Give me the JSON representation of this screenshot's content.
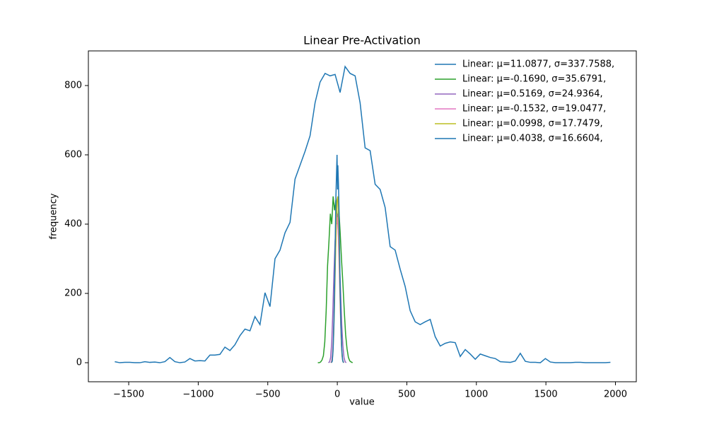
{
  "chart_data": {
    "type": "line",
    "title": "Linear Pre-Activation",
    "x_label": "value",
    "y_label": "frequency",
    "xlim": [
      -1790,
      2150
    ],
    "ylim": [
      -55,
      900
    ],
    "xticks": [
      {
        "value": -1500,
        "label": "−1500"
      },
      {
        "value": -1000,
        "label": "−1000"
      },
      {
        "value": -500,
        "label": "−500"
      },
      0,
      500,
      1000,
      1500,
      2000
    ],
    "yticks": [
      0,
      200,
      400,
      600,
      800
    ],
    "legend": "upper right",
    "series": [
      {
        "name": "Linear: μ=11.0877, σ=337.7588,",
        "color": "#1f77b4",
        "x": [
          -1600,
          -1564,
          -1528,
          -1492,
          -1456,
          -1420,
          -1384,
          -1348,
          -1312,
          -1276,
          -1240,
          -1204,
          -1168,
          -1132,
          -1096,
          -1060,
          -1024,
          -988,
          -952,
          -916,
          -880,
          -844,
          -808,
          -772,
          -736,
          -700,
          -664,
          -628,
          -592,
          -556,
          -520,
          -484,
          -448,
          -412,
          -376,
          -340,
          -304,
          -268,
          -232,
          -196,
          -160,
          -124,
          -88,
          -52,
          -16,
          20,
          56,
          92,
          128,
          164,
          200,
          236,
          272,
          308,
          344,
          380,
          416,
          452,
          488,
          524,
          560,
          596,
          632,
          668,
          704,
          740,
          776,
          812,
          848,
          884,
          920,
          956,
          992,
          1028,
          1064,
          1100,
          1136,
          1172,
          1208,
          1244,
          1280,
          1316,
          1352,
          1388,
          1424,
          1460,
          1496,
          1532,
          1568,
          1604,
          1640,
          1676,
          1712,
          1748,
          1784,
          1820,
          1856,
          1892,
          1928,
          1964
        ],
        "values": [
          3,
          0,
          1,
          1,
          0,
          0,
          3,
          1,
          2,
          0,
          3,
          15,
          3,
          0,
          2,
          12,
          5,
          6,
          5,
          22,
          22,
          24,
          45,
          35,
          52,
          78,
          97,
          92,
          133,
          110,
          202,
          162,
          300,
          325,
          375,
          405,
          530,
          570,
          610,
          655,
          750,
          810,
          835,
          828,
          832,
          780,
          855,
          835,
          828,
          750,
          620,
          612,
          515,
          500,
          448,
          335,
          325,
          270,
          220,
          150,
          118,
          110,
          118,
          125,
          75,
          48,
          56,
          60,
          58,
          18,
          38,
          25,
          10,
          25,
          20,
          15,
          12,
          3,
          2,
          1,
          5,
          27,
          4,
          1,
          1,
          0,
          12,
          2,
          0,
          0,
          0,
          0,
          1,
          1,
          0,
          0,
          0,
          0,
          0,
          1
        ]
      },
      {
        "name": "Linear: μ=-0.1690, σ=35.6791,",
        "color": "#2ca02c",
        "x": [
          -140,
          -130,
          -120,
          -110,
          -100,
          -90,
          -80,
          -70,
          -60,
          -50,
          -40,
          -30,
          -20,
          -10,
          0,
          10,
          20,
          30,
          40,
          50,
          60,
          70,
          80,
          90,
          100,
          110
        ],
        "values": [
          0,
          0,
          2,
          8,
          20,
          60,
          150,
          280,
          350,
          430,
          400,
          480,
          440,
          470,
          400,
          450,
          380,
          300,
          230,
          150,
          80,
          40,
          15,
          5,
          2,
          0
        ]
      },
      {
        "name": "Linear: μ=0.5169, σ=24.9364,",
        "color": "#9467bd",
        "x": [
          -64,
          -56,
          -48,
          -40,
          -32,
          -24,
          -16,
          -8,
          0,
          8,
          16,
          24,
          32,
          40,
          48,
          56,
          64
        ],
        "values": [
          0,
          2,
          15,
          60,
          150,
          260,
          350,
          400,
          430,
          370,
          290,
          200,
          110,
          50,
          15,
          3,
          0
        ]
      },
      {
        "name": "Linear: μ=-0.1532, σ=19.0477,",
        "color": "#e377c2",
        "x": [
          -48,
          -42,
          -36,
          -30,
          -24,
          -18,
          -12,
          -6,
          0,
          6,
          12,
          18,
          24,
          30,
          36,
          42,
          48
        ],
        "values": [
          0,
          3,
          20,
          60,
          140,
          240,
          330,
          400,
          420,
          380,
          300,
          210,
          120,
          50,
          15,
          3,
          0
        ]
      },
      {
        "name": "Linear: μ=0.0998, σ=17.7479,",
        "color": "#bcbd22",
        "x": [
          -44,
          -38,
          -32,
          -26,
          -20,
          -14,
          -8,
          -2,
          4,
          10,
          16,
          22,
          28,
          34,
          40,
          46
        ],
        "values": [
          0,
          3,
          25,
          80,
          170,
          290,
          400,
          470,
          480,
          400,
          280,
          160,
          70,
          20,
          4,
          0
        ]
      },
      {
        "name": "Linear: μ=0.4038, σ=16.6604,",
        "color": "#1f77b4",
        "x": [
          -42,
          -36,
          -30,
          -24,
          -18,
          -14,
          -10,
          -6,
          -2,
          2,
          4,
          8,
          12,
          16,
          20,
          26,
          32,
          38,
          44
        ],
        "values": [
          0,
          5,
          40,
          120,
          250,
          380,
          480,
          540,
          600,
          500,
          570,
          520,
          450,
          330,
          220,
          110,
          40,
          8,
          0
        ]
      }
    ]
  }
}
